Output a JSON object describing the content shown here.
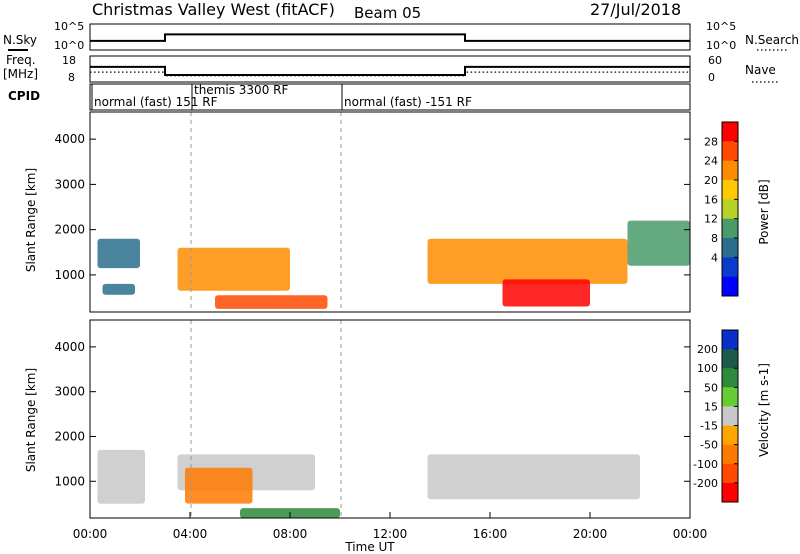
{
  "header": {
    "station": "Christmas Valley West (fitACF)",
    "beam": "Beam 05",
    "date": "27/Jul/2018"
  },
  "chart_data": [
    {
      "type": "line",
      "panel": "noise",
      "labels": {
        "left": "N.Sky",
        "right": "N.Search"
      },
      "y_ticks": [
        "10^5",
        "10^0"
      ],
      "right_y_ticks": [
        "10^5",
        "10^0"
      ],
      "series": [
        {
          "x": [
            0,
            3.0,
            3.0,
            15.0,
            15.0,
            24
          ],
          "values": [
            0.35,
            0.35,
            0.6,
            0.6,
            0.35,
            0.35
          ]
        }
      ]
    },
    {
      "type": "line",
      "panel": "frequency",
      "labels": {
        "left_top": "Freq.",
        "left_bottom": "[MHz]",
        "right": "Nave"
      },
      "y_ticks": [
        "18",
        "8"
      ],
      "right_y_ticks": [
        "60",
        "0"
      ],
      "series": [
        {
          "x": [
            0,
            3.0,
            3.0,
            15.0,
            15.0,
            24
          ],
          "values": [
            13.8,
            13.8,
            10.7,
            10.7,
            13.8,
            13.8
          ]
        },
        {
          "x": [
            0,
            3.0,
            3.0,
            15.0,
            15.0,
            24
          ],
          "values": [
            11.8,
            11.8,
            10.4,
            10.4,
            11.8,
            11.8
          ]
        }
      ]
    },
    {
      "type": "table",
      "panel": "cpid",
      "label": "CPID",
      "segments": [
        {
          "start": 0,
          "label": "normal (fast) 151 RF"
        },
        {
          "start": 4.0,
          "label": "themis 3300 RF"
        },
        {
          "start": 10.0,
          "label": "normal (fast) -151 RF"
        }
      ]
    },
    {
      "type": "heatmap",
      "panel": "power",
      "ylabel": "Slant Range [km]",
      "ylim": [
        180,
        4600
      ],
      "y_ticks": [
        1000,
        2000,
        3000,
        4000
      ],
      "colorbar": {
        "label": "Power [dB]",
        "ticks": [
          "28",
          "24",
          "20",
          "16",
          "12",
          "8",
          "4"
        ],
        "colors": [
          "#ff0000",
          "#ff4a00",
          "#ff8c00",
          "#ffc800",
          "#b8d22a",
          "#4a9a6a",
          "#2a6e8c",
          "#0a3ccc",
          "#0000ff"
        ]
      },
      "regions": [
        {
          "x": [
            0.3,
            2.0
          ],
          "y": [
            1150,
            1800
          ],
          "level": 6
        },
        {
          "x": [
            0.5,
            1.8
          ],
          "y": [
            560,
            800
          ],
          "level": 6
        },
        {
          "x": [
            3.5,
            8.0
          ],
          "y": [
            650,
            1600
          ],
          "level": 2
        },
        {
          "x": [
            5.0,
            9.5
          ],
          "y": [
            250,
            550
          ],
          "level": 1
        },
        {
          "x": [
            13.5,
            21.5
          ],
          "y": [
            800,
            1800
          ],
          "level": 2
        },
        {
          "x": [
            16.5,
            20.0
          ],
          "y": [
            300,
            900
          ],
          "level": 0
        },
        {
          "x": [
            21.5,
            24.0
          ],
          "y": [
            1200,
            2200
          ],
          "level": 5
        }
      ]
    },
    {
      "type": "heatmap",
      "panel": "velocity",
      "ylabel": "Slant Range [km]",
      "xlabel": "Time UT",
      "ylim": [
        180,
        4600
      ],
      "y_ticks": [
        1000,
        2000,
        3000,
        4000
      ],
      "x_ticks": [
        "00:00",
        "04:00",
        "08:00",
        "12:00",
        "16:00",
        "20:00",
        "00:00"
      ],
      "colorbar": {
        "label": "Velocity [m s-1]",
        "ticks": [
          "200",
          "100",
          "50",
          "15",
          "-15",
          "-50",
          "-100",
          "-200"
        ],
        "colors": [
          "#0a2ecc",
          "#1e5a4c",
          "#2e8a3c",
          "#66cc33",
          "#c8c8c8",
          "#ffa500",
          "#ff7a00",
          "#ff4a00",
          "#ff0000"
        ]
      },
      "regions": [
        {
          "x": [
            0.3,
            2.2
          ],
          "y": [
            500,
            1700
          ],
          "level": 4
        },
        {
          "x": [
            3.5,
            9.0
          ],
          "y": [
            800,
            1600
          ],
          "level": 4
        },
        {
          "x": [
            3.8,
            6.5
          ],
          "y": [
            500,
            1300
          ],
          "level": 6
        },
        {
          "x": [
            6.0,
            10.0
          ],
          "y": [
            180,
            400
          ],
          "level": 2
        },
        {
          "x": [
            13.5,
            22.0
          ],
          "y": [
            600,
            1600
          ],
          "level": 4
        }
      ]
    }
  ]
}
